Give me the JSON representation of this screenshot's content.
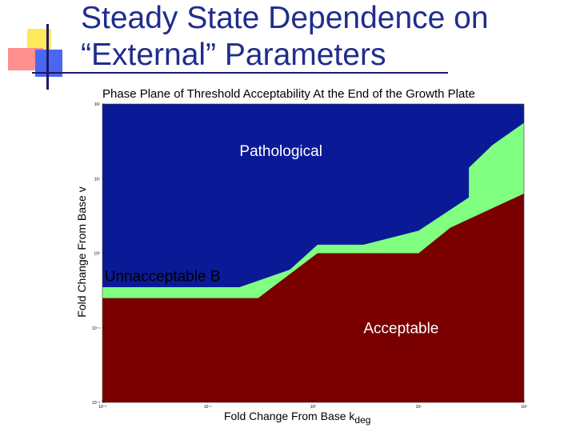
{
  "slide": {
    "title_line1": "Steady State Dependence on",
    "title_line2": "“External” Parameters"
  },
  "chart_data": {
    "type": "area",
    "title": "Phase Plane of Threshold Acceptability At the End of the Growth Plate",
    "xlabel": "Fold Change From Base k",
    "xlabel_subscript": "deg",
    "ylabel": "Fold Change From Base v",
    "x_scale": "log",
    "y_scale": "log",
    "xlim": [
      0.01,
      100
    ],
    "ylim": [
      0.01,
      100
    ],
    "x_ticks": [
      0.01,
      0.1,
      1,
      10,
      100
    ],
    "y_ticks": [
      0.01,
      0.1,
      1,
      10,
      100
    ],
    "x_tick_labels": [
      "10⁻²",
      "10⁻¹",
      "10⁰",
      "10¹",
      "10²"
    ],
    "y_tick_labels": [
      "10²",
      "10¹",
      "10⁰",
      "10⁻¹",
      "10⁻²"
    ],
    "grid": false,
    "colors": {
      "Pathological": "#0a1a96",
      "Unnacceptable B": "#80ff80",
      "Acceptable": "#7a0000"
    },
    "boundaries": {
      "acceptable_upper": {
        "x": [
          0.01,
          0.25,
          0.3,
          1.1,
          10,
          20,
          100
        ],
        "y": [
          0.25,
          0.25,
          0.25,
          1.0,
          1.0,
          2.2,
          6.3
        ]
      },
      "pathological_lower": {
        "x": [
          0.01,
          0.2,
          0.6,
          1.1,
          3.0,
          10,
          30,
          30,
          50,
          100
        ],
        "y": [
          0.35,
          0.35,
          0.6,
          1.3,
          1.3,
          2.0,
          5.6,
          14,
          28,
          56
        ]
      }
    },
    "region_labels": [
      "Pathological",
      "Unnacceptable B",
      "Acceptable"
    ]
  }
}
